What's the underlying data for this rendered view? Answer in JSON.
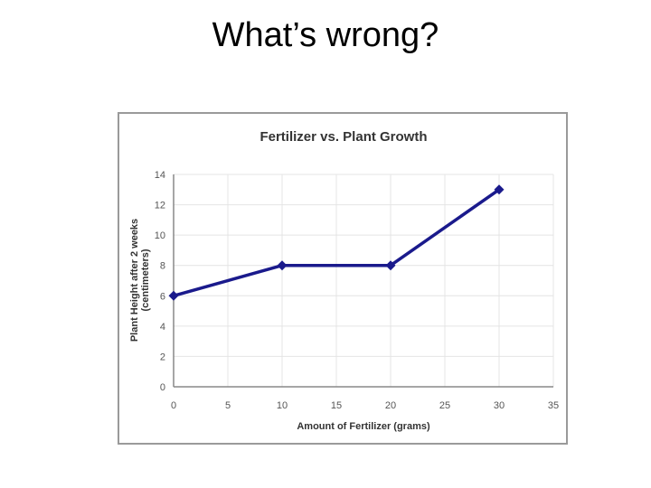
{
  "slide": {
    "title": "What’s wrong?"
  },
  "chart_data": {
    "type": "line",
    "title": "Fertilizer vs. Plant Growth",
    "xlabel": "Amount of Fertilizer (grams)",
    "ylabel_line1": "Plant Height after 2 weeks",
    "ylabel_line2": "(centimeters)",
    "xlim": [
      0,
      35
    ],
    "ylim": [
      0,
      14
    ],
    "xticks": [
      0,
      5,
      10,
      15,
      20,
      25,
      30,
      35
    ],
    "yticks": [
      0,
      2,
      4,
      6,
      8,
      10,
      12,
      14
    ],
    "grid": true,
    "series": [
      {
        "x": [
          0,
          10,
          20,
          30
        ],
        "y": [
          6,
          8,
          8,
          13
        ]
      }
    ],
    "line_color": "#1a1a8c",
    "axis_color": "#888888",
    "grid_color": "#e4e4e4"
  }
}
